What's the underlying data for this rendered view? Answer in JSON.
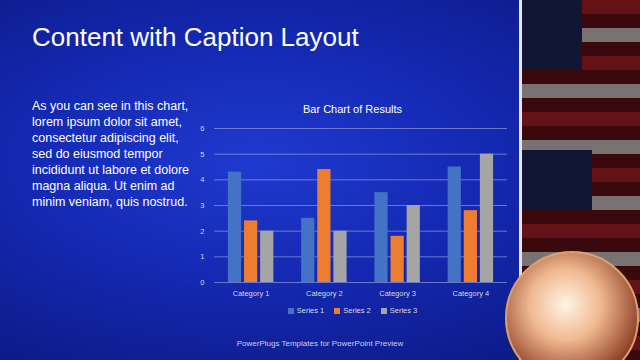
{
  "page": {
    "title": "Content with Caption Layout",
    "text": "As you can see in this chart, lorem ipsum dolor sit amet, consectetur adipiscing elit, sed do eiusmod tempor incididunt ut labore et dolore magna aliqua. Ut enim ad minim veniam, quis nostrud.",
    "footer": "PowerPlugs Templates for PowerPoint Preview"
  },
  "chart_data": {
    "type": "bar",
    "title": "Bar Chart of Results",
    "categories": [
      "Category 1",
      "Category 2",
      "Category 3",
      "Category 4"
    ],
    "series": [
      {
        "name": "Series 1",
        "color": "#4472c4",
        "values": [
          4.3,
          2.5,
          3.5,
          4.5
        ]
      },
      {
        "name": "Series 2",
        "color": "#ed7d31",
        "values": [
          2.4,
          4.4,
          1.8,
          2.8
        ]
      },
      {
        "name": "Series 3",
        "color": "#a5a5a5",
        "values": [
          2,
          2,
          3,
          5
        ]
      }
    ],
    "ylim": [
      0,
      6
    ],
    "yticks": [
      0,
      1,
      2,
      3,
      4,
      5,
      6
    ],
    "grid": true,
    "legend": "bottom"
  }
}
